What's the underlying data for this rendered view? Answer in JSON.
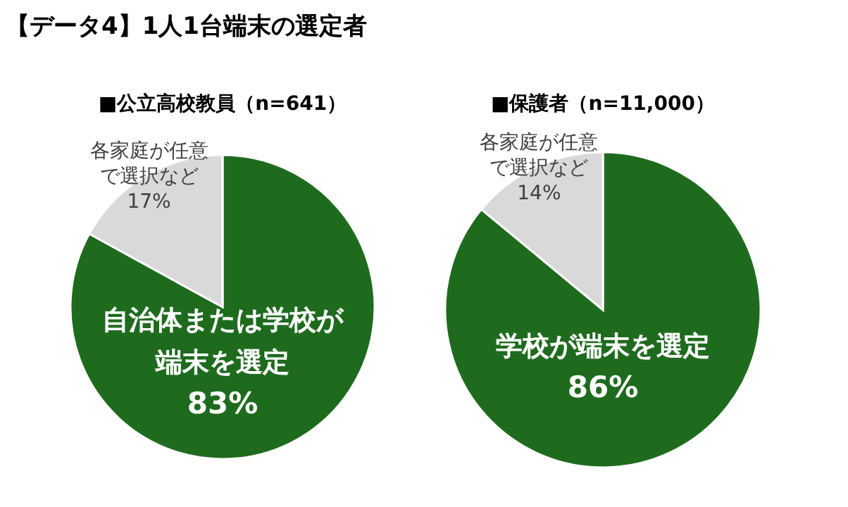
{
  "chart_data": [
    {
      "type": "pie",
      "title": "【データ4】1人1台端末の選定者",
      "subtitle": "■公立高校教員（n=641）",
      "categories": [
        "自治体または学校が端末を選定",
        "各家庭が任意で選択など"
      ],
      "values": [
        83,
        17
      ],
      "value_labels": [
        "83%",
        "17%"
      ],
      "colors": [
        "#1e6b1e",
        "#d9d9d9"
      ]
    },
    {
      "type": "pie",
      "subtitle": "■保護者（n=11,000）",
      "categories": [
        "学校が端末を選定",
        "各家庭が任意で選択など"
      ],
      "values": [
        86,
        14
      ],
      "value_labels": [
        "86%",
        "14%"
      ],
      "colors": [
        "#1e6b1e",
        "#d9d9d9"
      ]
    }
  ]
}
